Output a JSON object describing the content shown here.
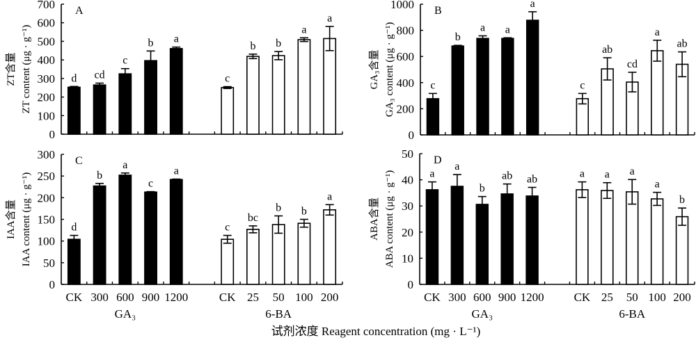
{
  "figure": {
    "xlabel": "试剂浓度 Reagent concentration (mg · L⁻¹)",
    "colors": {
      "ga3_bar": "#000000",
      "ba_bar": "#ffffff",
      "axis": "#000000"
    }
  },
  "chart_data": [
    {
      "type": "bar",
      "panel": "A",
      "ylabel_cn": "ZT含量",
      "ylabel_en": "ZT content (μg · g⁻¹)",
      "ylim": [
        0,
        700
      ],
      "yticks": [
        0,
        100,
        200,
        300,
        400,
        500,
        600,
        700
      ],
      "groups": [
        {
          "name": "GA₃",
          "fill": "black",
          "categories": [
            "CK",
            "300",
            "600",
            "900",
            "1200"
          ],
          "values": [
            253,
            265,
            325,
            396,
            461
          ],
          "errors": [
            4,
            10,
            28,
            52,
            8
          ],
          "letters": [
            "d",
            "cd",
            "c",
            "b",
            "a"
          ]
        },
        {
          "name": "6-BA",
          "fill": "white",
          "categories": [
            "CK",
            "25",
            "50",
            "100",
            "200"
          ],
          "values": [
            251,
            419,
            423,
            509,
            515
          ],
          "errors": [
            5,
            12,
            22,
            10,
            65
          ],
          "letters": [
            "c",
            "b",
            "b",
            "a",
            "a"
          ]
        }
      ]
    },
    {
      "type": "bar",
      "panel": "B",
      "ylabel_cn": "GA₃含量",
      "ylabel_en": "GA₃ content (μg · g⁻¹)",
      "ylim": [
        0,
        1000
      ],
      "yticks": [
        0,
        200,
        400,
        600,
        800,
        1000
      ],
      "groups": [
        {
          "name": "GA₃",
          "fill": "black",
          "categories": [
            "CK",
            "300",
            "600",
            "900",
            "1200"
          ],
          "values": [
            277,
            680,
            738,
            738,
            877
          ],
          "errors": [
            40,
            5,
            20,
            5,
            65
          ],
          "letters": [
            "c",
            "b",
            "a",
            "a",
            "a"
          ]
        },
        {
          "name": "6-BA",
          "fill": "white",
          "categories": [
            "CK",
            "25",
            "50",
            "100",
            "200"
          ],
          "values": [
            277,
            505,
            404,
            644,
            540
          ],
          "errors": [
            40,
            85,
            75,
            80,
            95
          ],
          "letters": [
            "c",
            "ab",
            "cd",
            "a",
            "ab"
          ]
        }
      ]
    },
    {
      "type": "bar",
      "panel": "C",
      "ylabel_cn": "IAA含量",
      "ylabel_en": "IAA content (μg · g⁻¹)",
      "ylim": [
        0,
        300
      ],
      "yticks": [
        0,
        50,
        100,
        150,
        200,
        250,
        300
      ],
      "groups": [
        {
          "name": "GA₃",
          "fill": "black",
          "categories": [
            "CK",
            "300",
            "600",
            "900",
            "1200"
          ],
          "values": [
            104,
            227,
            252,
            213,
            242
          ],
          "errors": [
            9,
            6,
            5,
            1,
            1
          ],
          "letters": [
            "d",
            "b",
            "a",
            "c",
            "a"
          ]
        },
        {
          "name": "6-BA",
          "fill": "white",
          "categories": [
            "CK",
            "25",
            "50",
            "100",
            "200"
          ],
          "values": [
            104,
            127,
            138,
            141,
            172
          ],
          "errors": [
            9,
            8,
            20,
            9,
            12
          ],
          "letters": [
            "c",
            "bc",
            "b",
            "b",
            "a"
          ]
        }
      ]
    },
    {
      "type": "bar",
      "panel": "D",
      "ylabel_cn": "ABA含量",
      "ylabel_en": "ABA content (μg · g⁻¹)",
      "ylim": [
        0,
        50
      ],
      "yticks": [
        0,
        10,
        20,
        30,
        40,
        50
      ],
      "groups": [
        {
          "name": "GA₃",
          "fill": "black",
          "categories": [
            "CK",
            "300",
            "600",
            "900",
            "1200"
          ],
          "values": [
            36.2,
            37.5,
            30.6,
            34.6,
            33.8
          ],
          "errors": [
            3,
            4.5,
            3,
            3.8,
            3.3
          ],
          "letters": [
            "a",
            "a",
            "b",
            "ab",
            "ab"
          ]
        },
        {
          "name": "6-BA",
          "fill": "white",
          "categories": [
            "CK",
            "25",
            "50",
            "100",
            "200"
          ],
          "values": [
            36.2,
            35.9,
            35.4,
            32.7,
            25.9
          ],
          "errors": [
            3,
            3,
            4.7,
            2.5,
            3.3
          ],
          "letters": [
            "a",
            "a",
            "a",
            "a",
            "b"
          ]
        }
      ]
    }
  ]
}
